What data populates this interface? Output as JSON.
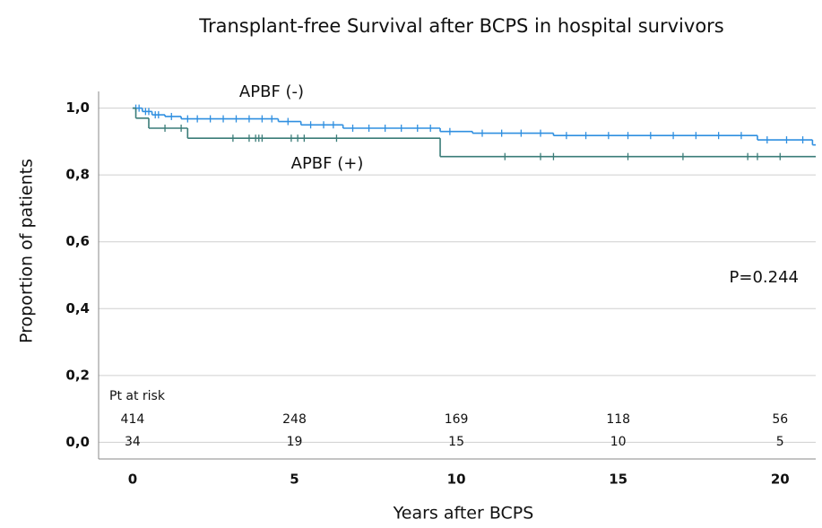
{
  "chart_data": {
    "type": "km",
    "title": "Transplant-free Survival after BCPS in hospital survivors",
    "x_label": "Years after BCPS",
    "y_label": "Proportion of patients",
    "xlim": [
      -1.05,
      21.1
    ],
    "ylim": [
      -0.05,
      1.05
    ],
    "xticks": [
      0,
      5,
      10,
      15,
      20
    ],
    "yticks": [
      {
        "value": 0.0,
        "label": "0,0"
      },
      {
        "value": 0.2,
        "label": "0,2"
      },
      {
        "value": 0.4,
        "label": "0,4"
      },
      {
        "value": 0.6,
        "label": "0,6"
      },
      {
        "value": 0.8,
        "label": "0,8"
      },
      {
        "value": 1.0,
        "label": "1,0"
      }
    ],
    "grid": true,
    "series": [
      {
        "name": "APBF  (-)",
        "color": "#2f8fe0",
        "x": [
          0,
          0.3,
          0.6,
          1.0,
          1.5,
          4.5,
          5.2,
          6.5,
          9.5,
          10.5,
          13.0,
          19.3,
          21.0
        ],
        "values": [
          1.0,
          0.99,
          0.98,
          0.975,
          0.968,
          0.96,
          0.95,
          0.94,
          0.93,
          0.925,
          0.918,
          0.905,
          0.89
        ],
        "censor_x": [
          0.1,
          0.2,
          0.4,
          0.5,
          0.7,
          0.8,
          1.2,
          1.7,
          2.0,
          2.4,
          2.8,
          3.2,
          3.6,
          4.0,
          4.3,
          4.8,
          5.5,
          5.9,
          6.2,
          6.8,
          7.3,
          7.8,
          8.3,
          8.8,
          9.2,
          9.8,
          10.8,
          11.4,
          12.0,
          12.6,
          13.4,
          14.0,
          14.7,
          15.3,
          16.0,
          16.7,
          17.4,
          18.1,
          18.8,
          19.6,
          20.2,
          20.7
        ]
      },
      {
        "name": "APBF  (+)",
        "color": "#3a7c78",
        "x": [
          0,
          0.1,
          0.5,
          1.7,
          9.5
        ],
        "values": [
          1.0,
          0.97,
          0.94,
          0.91,
          0.855
        ],
        "censor_x": [
          1.0,
          1.5,
          3.1,
          3.6,
          3.8,
          3.9,
          4.0,
          4.9,
          5.1,
          5.3,
          6.3,
          11.5,
          12.6,
          13.0,
          15.3,
          17.0,
          19.0,
          19.3,
          20.0
        ]
      }
    ],
    "annotation": "P=0.244",
    "risk_table": {
      "label": "Pt at risk",
      "rows": [
        [
          414,
          248,
          169,
          118,
          56
        ],
        [
          34,
          19,
          15,
          10,
          5
        ]
      ]
    }
  }
}
